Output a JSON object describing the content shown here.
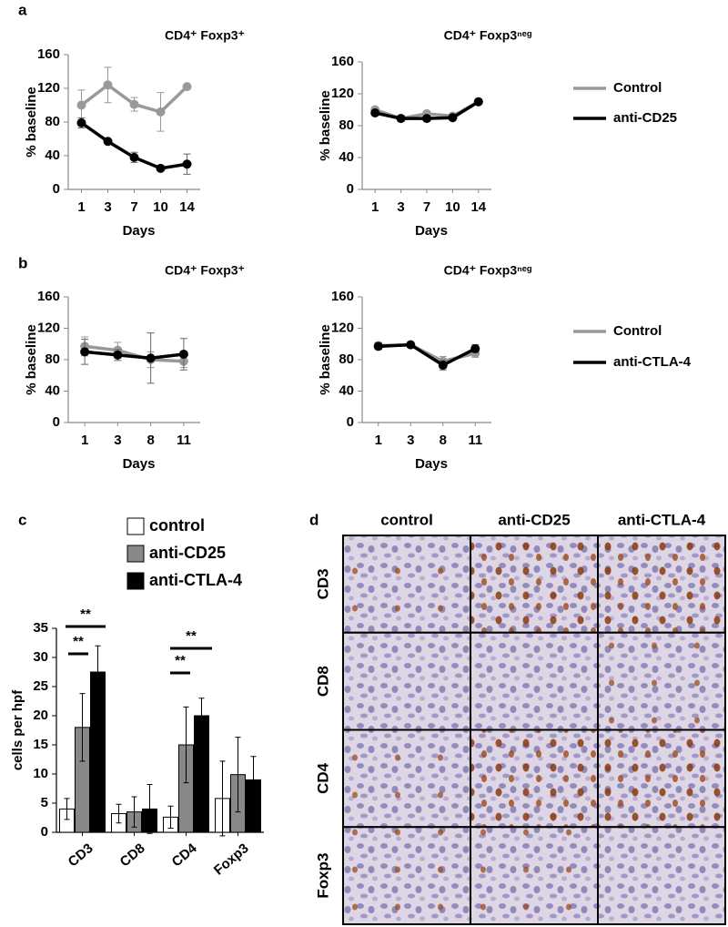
{
  "panel_labels": [
    "a",
    "b",
    "c",
    "d"
  ],
  "chart_data": [
    {
      "type": "line",
      "title": "CD4⁺ Foxp3⁺",
      "x_label": "Days",
      "y_label": "% baseline",
      "categories": [
        "1",
        "3",
        "7",
        "10",
        "14"
      ],
      "series": [
        {
          "color": "#999999",
          "values": [
            100,
            124,
            101,
            92,
            122
          ],
          "errors": [
            18,
            21,
            8,
            23,
            2
          ]
        },
        {
          "color": "#000000",
          "values": [
            79,
            57,
            38,
            25,
            30
          ],
          "errors": [
            6,
            2,
            6,
            3,
            12
          ]
        }
      ],
      "ylim": [
        0,
        160
      ],
      "yticks": [
        0,
        40,
        80,
        120,
        160
      ]
    },
    {
      "type": "line",
      "title": "CD4⁺ Foxp3ⁿᵉᵍ",
      "x_label": "Days",
      "y_label": "% baseline",
      "categories": [
        "1",
        "3",
        "7",
        "10",
        "14"
      ],
      "series": [
        {
          "name": "Control",
          "color": "#999999",
          "values": [
            100,
            89,
            95,
            92,
            110
          ],
          "errors": [
            3,
            2,
            2,
            2,
            2
          ]
        },
        {
          "name": "anti-CD25",
          "color": "#000000",
          "values": [
            96,
            89,
            89,
            90,
            110
          ],
          "errors": [
            3,
            2,
            2,
            2,
            2
          ]
        }
      ],
      "ylim": [
        0,
        160
      ],
      "yticks": [
        0,
        40,
        80,
        120,
        160
      ]
    },
    {
      "type": "line",
      "title": "CD4⁺ Foxp3⁺",
      "x_label": "Days",
      "y_label": "% baseline",
      "categories": [
        "1",
        "3",
        "8",
        "11"
      ],
      "series": [
        {
          "color": "#999999",
          "values": [
            97,
            92,
            80,
            78
          ],
          "errors": [
            12,
            10,
            10,
            8
          ]
        },
        {
          "color": "#000000",
          "values": [
            90,
            86,
            82,
            87
          ],
          "errors": [
            16,
            7,
            32,
            20
          ]
        }
      ],
      "ylim": [
        0,
        160
      ],
      "yticks": [
        0,
        40,
        80,
        120,
        160
      ]
    },
    {
      "type": "line",
      "title": "CD4⁺ Foxp3ⁿᵉᵍ",
      "x_label": "Days",
      "y_label": "% baseline",
      "categories": [
        "1",
        "3",
        "8",
        "11"
      ],
      "series": [
        {
          "name": "Control",
          "color": "#999999",
          "values": [
            98,
            99,
            78,
            88
          ],
          "errors": [
            4,
            2,
            6,
            5
          ]
        },
        {
          "name": "anti-CTLA-4",
          "color": "#000000",
          "values": [
            97,
            99,
            73,
            94
          ],
          "errors": [
            4,
            2,
            6,
            5
          ]
        }
      ],
      "ylim": [
        0,
        160
      ],
      "yticks": [
        0,
        40,
        80,
        120,
        160
      ]
    },
    {
      "type": "bar",
      "y_label": "cells per hpf",
      "categories": [
        "CD3",
        "CD8",
        "CD4",
        "Foxp3"
      ],
      "series": [
        {
          "name": "control",
          "color": "#ffffff",
          "values": [
            4,
            3.2,
            2.6,
            5.8
          ],
          "errors": [
            1.8,
            1.6,
            1.9,
            6.4
          ]
        },
        {
          "name": "anti-CD25",
          "color": "#888888",
          "values": [
            18,
            3.5,
            15,
            9.9
          ],
          "errors": [
            5.8,
            2.6,
            6.5,
            6.4
          ]
        },
        {
          "name": "anti-CTLA-4",
          "color": "#000000",
          "values": [
            27.5,
            4,
            20,
            9
          ],
          "errors": [
            4.5,
            4.2,
            3,
            4
          ]
        }
      ],
      "ylim": [
        0,
        35
      ],
      "yticks": [
        0,
        5,
        10,
        15,
        20,
        25,
        30,
        35
      ],
      "annotations": [
        "**",
        "**",
        "**",
        "**"
      ]
    }
  ],
  "microscopy": {
    "columns": [
      "control",
      "anti-CD25",
      "anti-CTLA-4"
    ],
    "rows": [
      "CD3",
      "CD8",
      "CD4",
      "Foxp3"
    ]
  }
}
